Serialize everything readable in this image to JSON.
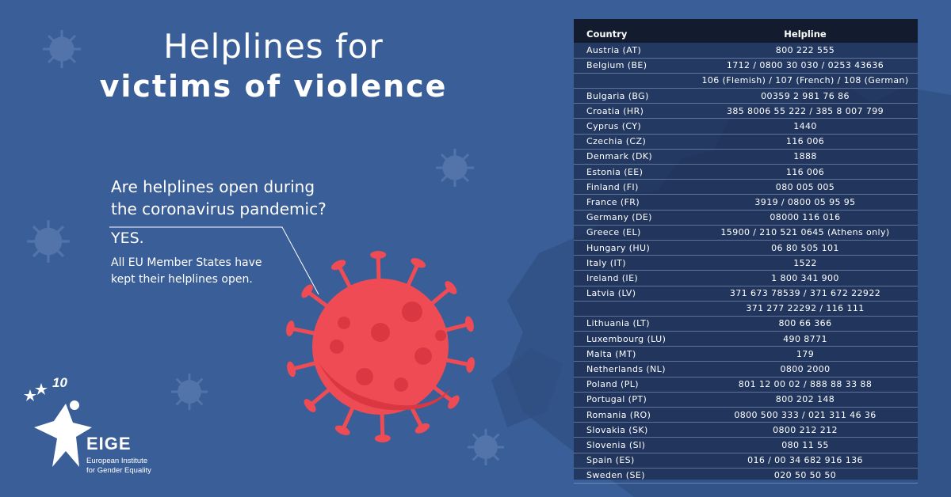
{
  "title": {
    "line1": "Helplines for",
    "line2": "victims of violence"
  },
  "question": {
    "line1": "Are helplines open during",
    "line2": "the coronavirus pandemic?"
  },
  "answer": {
    "yes": "YES.",
    "line1": "All EU Member States have",
    "line2": "kept their helplines open."
  },
  "logo": {
    "icon": "star-figure-logo",
    "anniversary": "10",
    "name": "EIGE",
    "sub_line1": "European Institute",
    "sub_line2": "for Gender Equality"
  },
  "table": {
    "headers": {
      "country": "Country",
      "helpline": "Helpline"
    },
    "rows": [
      {
        "country": "Austria (AT)",
        "helpline": "800 222 555"
      },
      {
        "country": "Belgium (BE)",
        "helpline": "1712 / 0800 30 030 / 0253 43636"
      },
      {
        "country": "",
        "helpline": "106 (Flemish) / 107 (French) / 108 (German)"
      },
      {
        "country": "Bulgaria (BG)",
        "helpline": "00359 2 981 76 86"
      },
      {
        "country": "Croatia (HR)",
        "helpline": "385 8006 55 222 / 385 8 007 799"
      },
      {
        "country": "Cyprus (CY)",
        "helpline": "1440"
      },
      {
        "country": "Czechia (CZ)",
        "helpline": "116 006"
      },
      {
        "country": "Denmark (DK)",
        "helpline": "1888"
      },
      {
        "country": "Estonia (EE)",
        "helpline": "116 006"
      },
      {
        "country": "Finland (FI)",
        "helpline": "080 005 005"
      },
      {
        "country": "France (FR)",
        "helpline": "3919 / 0800 05 95 95"
      },
      {
        "country": "Germany (DE)",
        "helpline": "08000 116 016"
      },
      {
        "country": "Greece (EL)",
        "helpline": "15900 / 210 521 0645 (Athens only)"
      },
      {
        "country": "Hungary (HU)",
        "helpline": "06 80 505 101"
      },
      {
        "country": "Italy (IT)",
        "helpline": "1522"
      },
      {
        "country": "Ireland (IE)",
        "helpline": "1 800 341 900"
      },
      {
        "country": "Latvia (LV)",
        "helpline": "371 673 78539 / 371 672 22922"
      },
      {
        "country": "",
        "helpline": "371 277 22292 / 116 111"
      },
      {
        "country": "Lithuania (LT)",
        "helpline": "800 66 366"
      },
      {
        "country": "Luxembourg (LU)",
        "helpline": "490 8771"
      },
      {
        "country": "Malta (MT)",
        "helpline": "179"
      },
      {
        "country": "Netherlands (NL)",
        "helpline": "0800 2000"
      },
      {
        "country": "Poland (PL)",
        "helpline": "801 12 00 02 / 888 88 33 88"
      },
      {
        "country": "Portugal (PT)",
        "helpline": "800 202 148"
      },
      {
        "country": "Romania (RO)",
        "helpline": "0800 500 333 / 021 311 46 36"
      },
      {
        "country": "Slovakia (SK)",
        "helpline": "0800 212 212"
      },
      {
        "country": "Slovenia (SI)",
        "helpline": "080 11 55"
      },
      {
        "country": "Spain (ES)",
        "helpline": "016 / 00 34 682 916 136"
      },
      {
        "country": "Sweden (SE)",
        "helpline": "020 50 50 50"
      }
    ]
  },
  "colors": {
    "background": "#3a5e97",
    "virus": "#ef4b55",
    "virus_spot": "#d93842",
    "table_header": "#131c2f"
  }
}
